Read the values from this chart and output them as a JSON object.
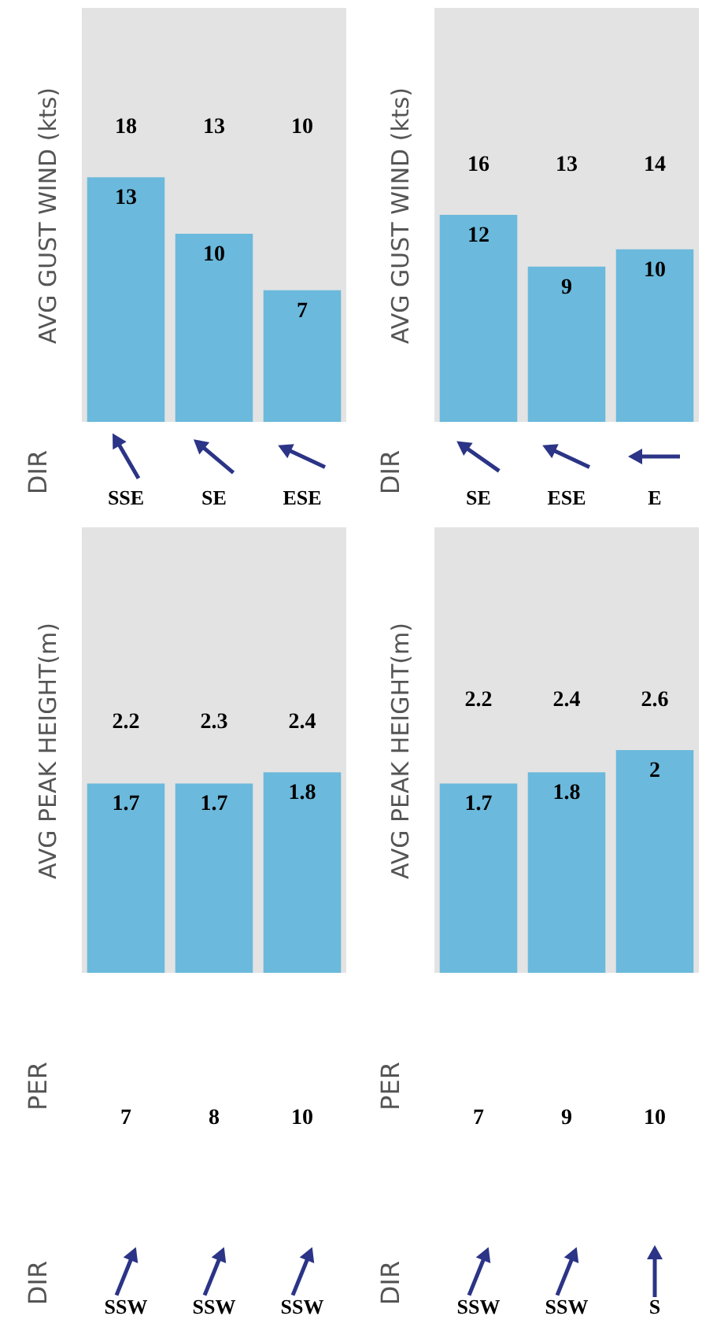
{
  "chart_data": [
    {
      "type": "bar",
      "ylabel": "AVG GUST WIND (kts)",
      "categories": [
        "SSE",
        "SE",
        "ESE"
      ],
      "values": [
        13,
        10,
        7
      ],
      "color": "#6bb9dc",
      "ylim": [
        0,
        22
      ],
      "data_labels": true,
      "annotations": [
        "18",
        "13",
        "10",
        "DIR"
      ]
    },
    {
      "type": "bar",
      "ylabel": "AVG GUST WIND (kts)",
      "categories": [
        "SE",
        "ESE",
        "E"
      ],
      "values": [
        12,
        9,
        10
      ],
      "color": "#6bb9dc",
      "ylim": [
        0,
        24
      ],
      "data_labels": true,
      "annotations": [
        "16",
        "13",
        "14",
        "DIR"
      ]
    },
    {
      "type": "bar",
      "ylabel": "AVG PEAK HEIGHT(m)",
      "categories": [
        "SSW",
        "SSW",
        "SSW"
      ],
      "values": [
        1.7,
        1.7,
        1.8
      ],
      "color": "#6bb9dc",
      "ylim": [
        0,
        4
      ],
      "data_labels": true,
      "annotations": [
        "2.2",
        "2.3",
        "2.4",
        "PER",
        "7",
        "8",
        "10",
        "DIR"
      ]
    },
    {
      "type": "bar",
      "ylabel": "AVG PEAK HEIGHT(m)",
      "categories": [
        "SSW",
        "SSW",
        "S"
      ],
      "values": [
        1.7,
        1.8,
        2
      ],
      "color": "#6bb9dc",
      "ylim": [
        0,
        4
      ],
      "data_labels": true,
      "annotations": [
        "2.2",
        "2.4",
        "2.6",
        "PER",
        "7",
        "9",
        "10",
        "DIR"
      ]
    }
  ]
}
